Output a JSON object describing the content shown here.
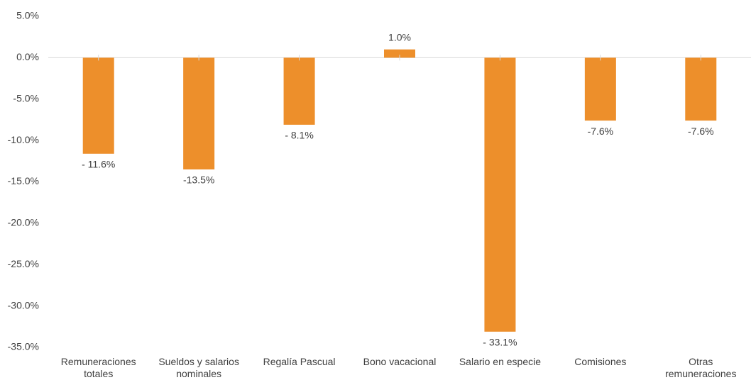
{
  "chart_data": {
    "type": "bar",
    "categories": [
      "Remuneraciones totales",
      "Sueldos y salarios nominales",
      "Regalía Pascual",
      "Bono vacacional",
      "Salario en especie",
      "Comisiones",
      "Otras remuneraciones"
    ],
    "values": [
      -11.6,
      -13.5,
      -8.1,
      1.0,
      -33.1,
      -7.6,
      -7.6
    ],
    "value_labels": [
      "- 11.6%",
      "-13.5%",
      "- 8.1%",
      "1.0%",
      "- 33.1%",
      "-7.6%",
      "-7.6%"
    ],
    "color": "#ed8f2b",
    "ylim": [
      -35,
      5
    ],
    "yticks": [
      {
        "value": 5,
        "label": "5.0%"
      },
      {
        "value": 0,
        "label": "0.0%"
      },
      {
        "value": -5,
        "label": "-5.0%"
      },
      {
        "value": -10,
        "label": "-10.0%"
      },
      {
        "value": -15,
        "label": "-15.0%"
      },
      {
        "value": -20,
        "label": "-20.0%"
      },
      {
        "value": -25,
        "label": "-25.0%"
      },
      {
        "value": -30,
        "label": "-30.0%"
      },
      {
        "value": -35,
        "label": "-35.0%"
      }
    ],
    "grid": false
  }
}
